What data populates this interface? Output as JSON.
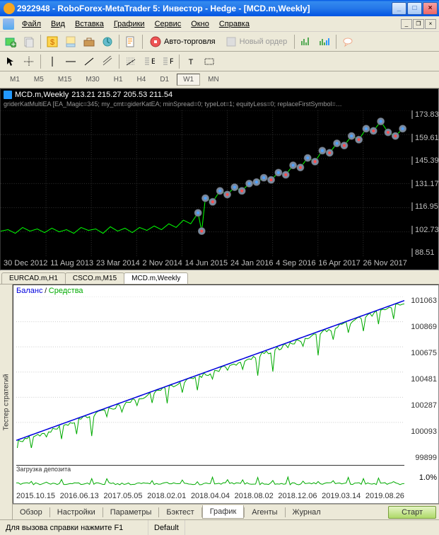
{
  "title": "2922948 - RoboForex-MetaTrader 5: Инвестор - Hedge - [MCD.m,Weekly]",
  "menus": [
    "Файл",
    "Вид",
    "Вставка",
    "Графики",
    "Сервис",
    "Окно",
    "Справка"
  ],
  "toolbar": {
    "auto_trade": "Авто-торговля",
    "new_order": "Новый ордер"
  },
  "timeframes": [
    "M1",
    "M5",
    "M15",
    "M30",
    "H1",
    "H4",
    "D1",
    "W1",
    "MN"
  ],
  "active_tf": "W1",
  "chart": {
    "symbol_title": "MCD.m,Weekly",
    "ohlc": "213.21 215.27 205.53 211.54",
    "params_line": "griderKatMultiEA [EA_Magic=345; my_cmt=giderKatEA; minSpread=0; typeLot=1; equityLess=0; replaceFirstSymbol=…",
    "bg": "#000000",
    "bar_color": "#00ff00",
    "marker_fill": "#7a8aa0",
    "marker_up": "#4fa2ff",
    "marker_down": "#ff4f4f",
    "grid_color": "#303030",
    "yticks": [
      "173.83",
      "159.61",
      "145.39",
      "131.17",
      "116.95",
      "102.73",
      "88.51"
    ],
    "xticks": [
      "30 Dec 2012",
      "11 Aug 2013",
      "23 Mar 2014",
      "2 Nov 2014",
      "14 Jun 2015",
      "24 Jan 2016",
      "4 Sep 2016",
      "16 Apr 2017",
      "26 Nov 2017"
    ]
  },
  "chart_tabs": [
    "EURCAD.m,H1",
    "CSCO.m,M15",
    "MCD.m,Weekly"
  ],
  "active_chart_tab": "MCD.m,Weekly",
  "tester": {
    "side_label": "Тестер стратегий",
    "balance_label": "Баланс",
    "equity_label": "Средства",
    "balance_color": "#0000dd",
    "equity_color": "#00aa00",
    "yticks": [
      "101063",
      "100869",
      "100675",
      "100481",
      "100287",
      "100093",
      "99899"
    ],
    "deposit_label": "Загрузка депозита",
    "deposit_yticks": [
      "1.0%"
    ],
    "xticks": [
      "2015.10.15",
      "2016.06.13",
      "2017.05.05",
      "2018.02.01",
      "2018.04.04",
      "2018.08.02",
      "2018.12.06",
      "2019.03.14",
      "2019.08.26"
    ],
    "tabs": [
      "Обзор",
      "Настройки",
      "Параметры",
      "Бэктест",
      "График",
      "Агенты",
      "Журнал"
    ],
    "active_tab": "График",
    "start_btn": "Старт"
  },
  "status": {
    "help": "Для вызова справки нажмите F1",
    "profile": "Default"
  }
}
